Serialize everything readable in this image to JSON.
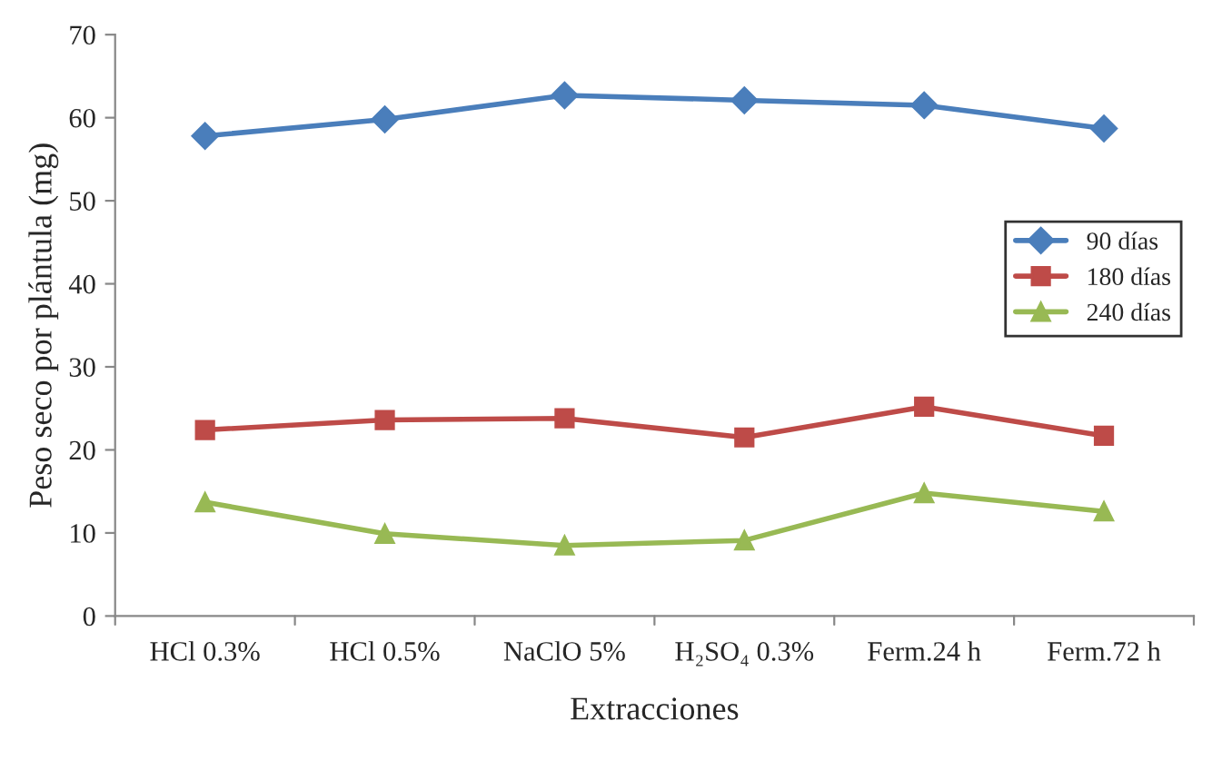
{
  "chart_data": {
    "type": "line",
    "xlabel": "Extracciones",
    "ylabel": "Peso seco por plántula (mg)",
    "categories": [
      "HCl 0.3%",
      "HCl 0.5%",
      "NaClO 5%",
      "H₂SO₄ 0.3%",
      "Ferm.24 h",
      "Ferm.72 h"
    ],
    "series": [
      {
        "name": "90 días",
        "color": "#4a7ebb",
        "marker": "diamond",
        "values": [
          57.8,
          59.8,
          62.7,
          62.1,
          61.5,
          58.7
        ]
      },
      {
        "name": "180 días",
        "color": "#be4b48",
        "marker": "square",
        "values": [
          22.4,
          23.6,
          23.8,
          21.5,
          25.2,
          21.7
        ]
      },
      {
        "name": "240 días",
        "color": "#98b954",
        "marker": "triangle",
        "values": [
          13.7,
          9.9,
          8.5,
          9.1,
          14.8,
          12.6
        ]
      }
    ],
    "ylim": [
      0,
      70
    ],
    "yticks": [
      0,
      10,
      20,
      30,
      40,
      50,
      60,
      70
    ],
    "grid": false,
    "legend": "right",
    "line_style": "solid"
  }
}
